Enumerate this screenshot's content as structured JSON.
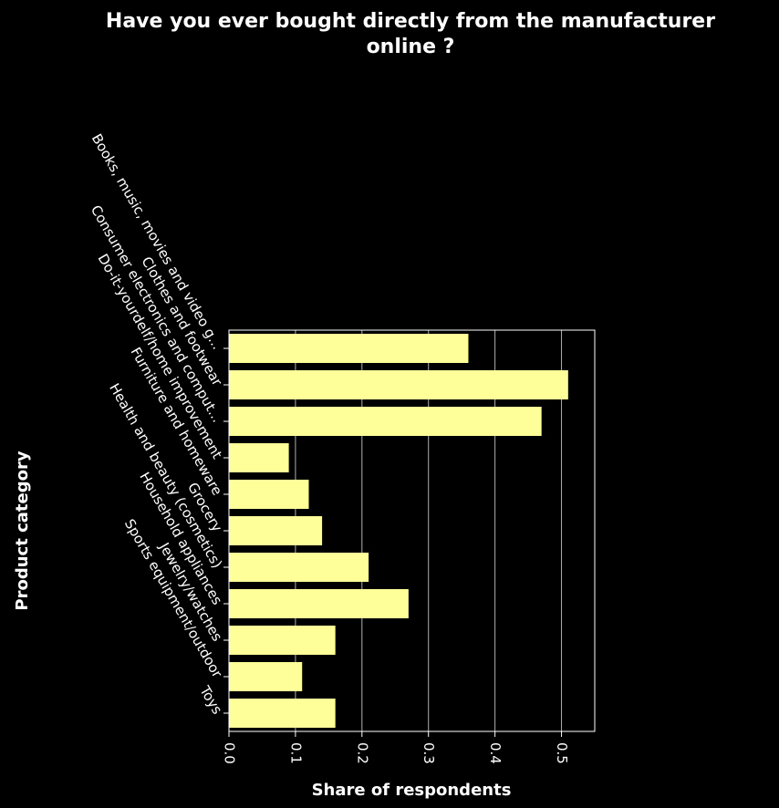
{
  "chart_data": {
    "type": "bar",
    "orientation": "horizontal",
    "title": "Have you ever bought directly from the manufacturer online ?",
    "title_lines": [
      "Have you ever bought directly from the manufacturer",
      "online ?"
    ],
    "xlabel": "Share of respondents",
    "ylabel": "Product category",
    "categories": [
      "Books, music, movies and video g...",
      "Clothes and footwear",
      "Consumer electronics and comput...",
      "Do-it-yourdelf/home improvement",
      "Furniture and homeware",
      "Grocery",
      "Health and beauty (cosmetics)",
      "Household appliances",
      "Jewelry/watches",
      "Sports equipment/outdoor",
      "Toys"
    ],
    "values": [
      0.36,
      0.51,
      0.47,
      0.09,
      0.12,
      0.14,
      0.21,
      0.27,
      0.16,
      0.11,
      0.16
    ],
    "xlim": [
      0,
      0.55
    ],
    "xticks": [
      0.0,
      0.1,
      0.2,
      0.3,
      0.4,
      0.5
    ],
    "xtick_labels": [
      "0.0",
      "0.1",
      "0.2",
      "0.3",
      "0.4",
      "0.5"
    ],
    "grid": "vertical",
    "colors": {
      "background": "#000000",
      "bar": "#ffff99",
      "grid": "#b0b0b0",
      "text": "#ffffff"
    }
  }
}
